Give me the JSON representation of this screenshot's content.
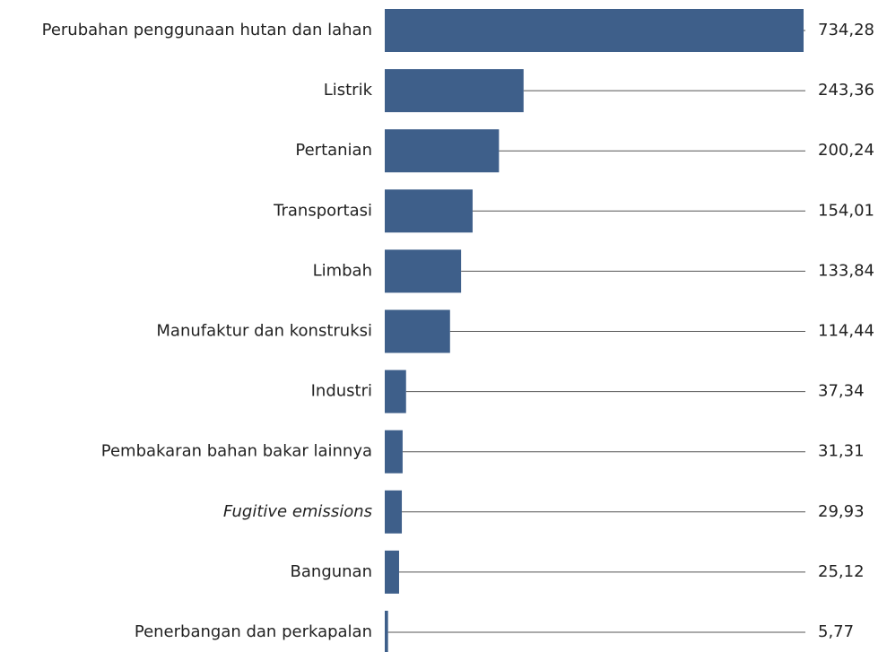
{
  "chart_data": {
    "type": "bar",
    "orientation": "horizontal",
    "categories": [
      "Perubahan penggunaan hutan dan lahan",
      "Listrik",
      "Pertanian",
      "Transportasi",
      "Limbah",
      "Manufaktur dan konstruksi",
      "Industri",
      "Pembakaran bahan bakar lainnya",
      "Fugitive emissions",
      "Bangunan",
      "Penerbangan dan perkapalan"
    ],
    "values": [
      734.28,
      243.36,
      200.24,
      154.01,
      133.84,
      114.44,
      37.34,
      31.31,
      29.93,
      25.12,
      5.77
    ],
    "value_labels": [
      "734,28",
      "243,36",
      "200,24",
      "154,01",
      "133,84",
      "114,44",
      "37,34",
      "31,31",
      "29,93",
      "25,12",
      "5,77"
    ],
    "color": "#3e5f8a"
  }
}
